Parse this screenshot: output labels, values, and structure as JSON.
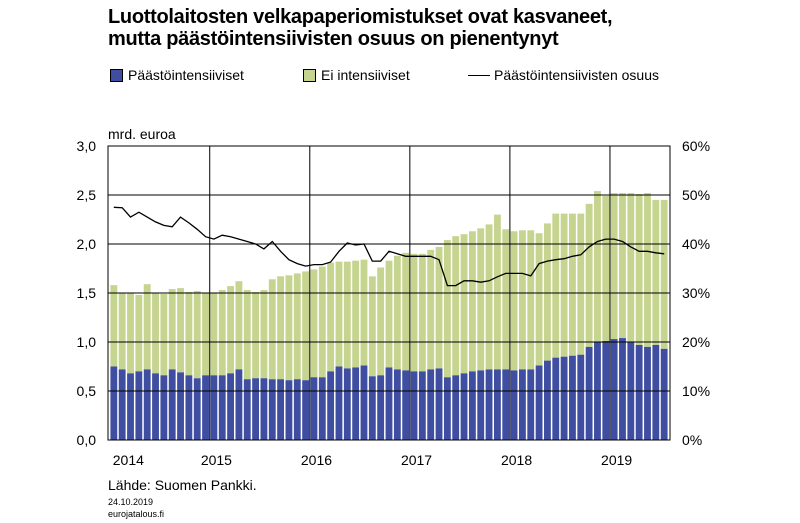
{
  "title_line1": "Luottolaitosten velkapaperiomistukset ovat kasvaneet,",
  "title_line2": "mutta päästöintensiivisten osuus on pienentynyt",
  "unit": "mrd. euroa",
  "source": "Lähde: Suomen Pankki.",
  "date": "24.10.2019",
  "site": "eurojatalous.fi",
  "colors": {
    "intensive": "#3F4EA0",
    "non_intensive": "#C5D48E",
    "share_line": "#000000"
  },
  "chart_data": {
    "type": "bar",
    "stacked": true,
    "x_start": "2014-01",
    "x_frequency": "monthly",
    "year_labels": [
      "2014",
      "2015",
      "2016",
      "2017",
      "2018",
      "2019"
    ],
    "ylim_left": [
      0,
      3.0
    ],
    "yticks_left": [
      "0,0",
      "0,5",
      "1,0",
      "1,5",
      "2,0",
      "2,5",
      "3,0"
    ],
    "ylim_right": [
      0,
      60
    ],
    "yticks_right": [
      "0%",
      "10%",
      "20%",
      "30%",
      "40%",
      "50%",
      "60%"
    ],
    "grid": true,
    "legend_position": "top",
    "series": [
      {
        "name": "Päästöintensiiviset",
        "axis": "left",
        "values": [
          0.75,
          0.72,
          0.68,
          0.7,
          0.72,
          0.68,
          0.66,
          0.72,
          0.69,
          0.66,
          0.63,
          0.66,
          0.66,
          0.66,
          0.68,
          0.72,
          0.62,
          0.63,
          0.63,
          0.62,
          0.62,
          0.61,
          0.62,
          0.61,
          0.64,
          0.64,
          0.7,
          0.75,
          0.73,
          0.74,
          0.76,
          0.65,
          0.66,
          0.74,
          0.72,
          0.71,
          0.7,
          0.7,
          0.72,
          0.73,
          0.64,
          0.66,
          0.68,
          0.7,
          0.71,
          0.72,
          0.72,
          0.72,
          0.71,
          0.72,
          0.72,
          0.76,
          0.81,
          0.84,
          0.85,
          0.86,
          0.87,
          0.95,
          1.0,
          1.01,
          1.03,
          1.04,
          1.0,
          0.97,
          0.95,
          0.97,
          0.93
        ]
      },
      {
        "name": "Ei intensiiviset",
        "axis": "left",
        "values": [
          0.83,
          0.78,
          0.82,
          0.78,
          0.87,
          0.82,
          0.83,
          0.82,
          0.86,
          0.85,
          0.89,
          0.84,
          0.84,
          0.87,
          0.89,
          0.9,
          0.91,
          0.88,
          0.9,
          1.02,
          1.05,
          1.07,
          1.08,
          1.11,
          1.1,
          1.13,
          1.11,
          1.07,
          1.09,
          1.09,
          1.08,
          1.02,
          1.1,
          1.09,
          1.16,
          1.2,
          1.2,
          1.2,
          1.22,
          1.24,
          1.4,
          1.42,
          1.42,
          1.43,
          1.45,
          1.48,
          1.58,
          1.43,
          1.42,
          1.42,
          1.42,
          1.35,
          1.4,
          1.47,
          1.46,
          1.45,
          1.44,
          1.46,
          1.54,
          1.48,
          1.49,
          1.48,
          1.52,
          1.54,
          1.57,
          1.48,
          1.52
        ]
      },
      {
        "name": "Päästöintensiivisten osuus",
        "axis": "right",
        "type": "line",
        "values": [
          47.5,
          47.4,
          45.5,
          46.5,
          45.5,
          44.5,
          43.8,
          43.5,
          45.5,
          44.3,
          43.0,
          41.5,
          41.0,
          41.8,
          41.5,
          41.0,
          40.5,
          40.0,
          39.0,
          40.5,
          38.5,
          36.8,
          36.0,
          35.5,
          35.8,
          35.8,
          36.3,
          38.5,
          40.2,
          39.8,
          40.0,
          36.5,
          36.5,
          38.5,
          38.0,
          37.5,
          37.5,
          37.5,
          37.5,
          36.8,
          31.5,
          31.5,
          32.5,
          32.5,
          32.2,
          32.5,
          33.3,
          34.0,
          34.0,
          34.0,
          33.5,
          36.0,
          36.5,
          36.8,
          37.0,
          37.5,
          37.8,
          39.4,
          40.5,
          41.0,
          41.0,
          40.5,
          39.4,
          38.5,
          38.5,
          38.2,
          38.0
        ]
      }
    ]
  }
}
